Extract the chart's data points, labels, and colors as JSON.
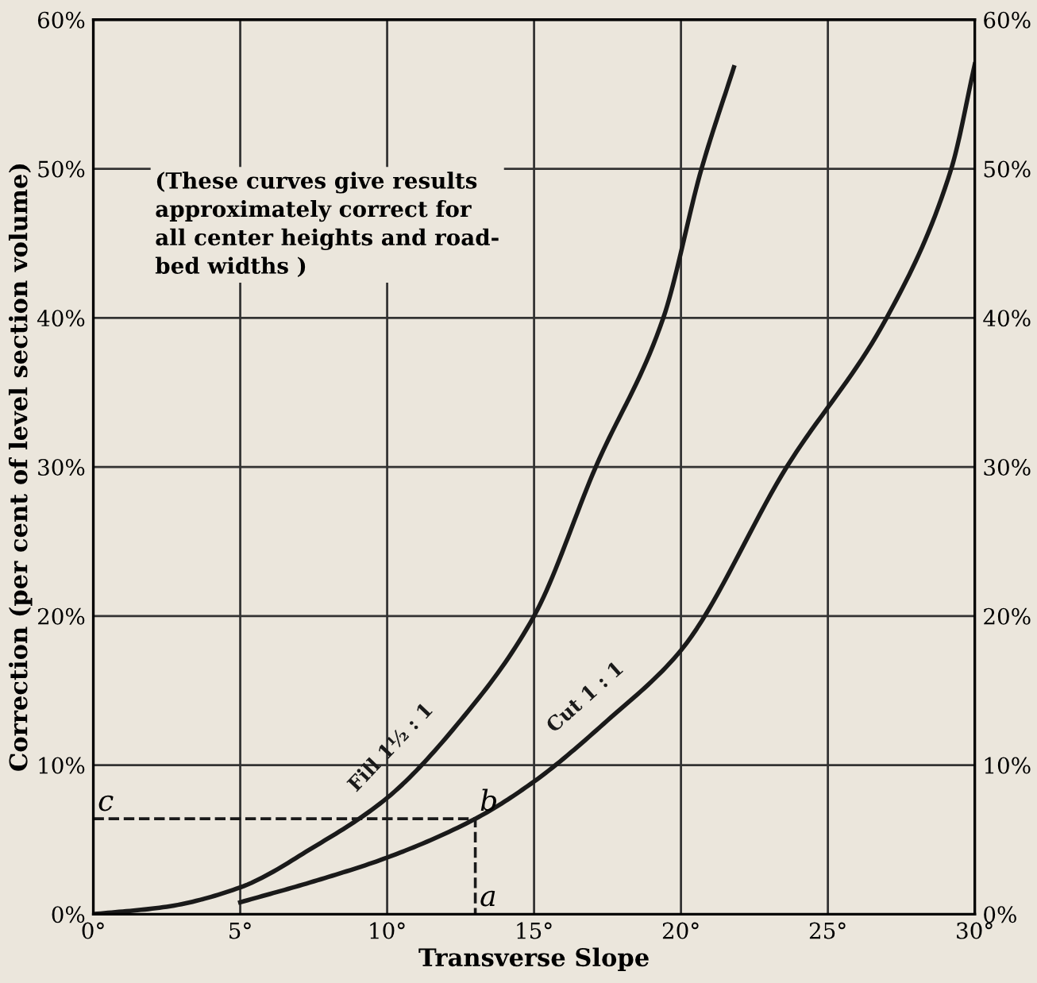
{
  "chart_data": {
    "type": "line",
    "xlabel": "Transverse Slope",
    "ylabel": "Correction (per cent of level section volume)",
    "xlim": [
      0,
      30
    ],
    "xticks": [
      {
        "value": 0,
        "label": "0°"
      },
      {
        "value": 5,
        "label": "5°"
      },
      {
        "value": 10,
        "label": "10°"
      },
      {
        "value": 15,
        "label": "15°"
      },
      {
        "value": 20,
        "label": "20°"
      },
      {
        "value": 25,
        "label": "25°"
      },
      {
        "value": 30,
        "label": "30°"
      }
    ],
    "ylim": [
      0,
      60
    ],
    "yticks": [
      {
        "value": 0,
        "label": "0%"
      },
      {
        "value": 10,
        "label": "10%"
      },
      {
        "value": 20,
        "label": "20%"
      },
      {
        "value": 30,
        "label": "30%"
      },
      {
        "value": 40,
        "label": "40%"
      },
      {
        "value": 50,
        "label": "50%"
      },
      {
        "value": 60,
        "label": "60%"
      }
    ],
    "y2lim": [
      0,
      60
    ],
    "y2ticks": [
      {
        "value": 0,
        "label": "0%"
      },
      {
        "value": 10,
        "label": "10%"
      },
      {
        "value": 20,
        "label": "20%"
      },
      {
        "value": 30,
        "label": "30%"
      },
      {
        "value": 40,
        "label": "40%"
      },
      {
        "value": 50,
        "label": "50%"
      },
      {
        "value": 60,
        "label": "60%"
      }
    ],
    "grid": true,
    "marker": "none",
    "series": [
      {
        "name": "Fill 1½ : 1",
        "color": "#1a1a1a",
        "line_style": "solid",
        "x": [
          0,
          2.5,
          5,
          7.5,
          10,
          12.5,
          15,
          17.1,
          19.4,
          20.7,
          21.8
        ],
        "values": [
          0,
          0.5,
          1.8,
          4.5,
          7.8,
          13,
          20,
          30,
          40,
          50,
          56.8
        ]
      },
      {
        "name": "Cut 1 : 1",
        "color": "#1a1a1a",
        "line_style": "solid",
        "x": [
          5,
          7.5,
          10,
          13,
          15,
          17.5,
          20,
          23.6,
          27,
          29.2,
          30
        ],
        "values": [
          0.8,
          2.2,
          3.8,
          6.4,
          8.9,
          13,
          17.7,
          30,
          40,
          50,
          57
        ]
      },
      {
        "color": "#1a1a1a",
        "line_style": "dashed",
        "x": [
          0,
          13,
          13
        ],
        "values": [
          6.4,
          6.4,
          0
        ],
        "value_labels": [
          "c",
          "b",
          "a"
        ]
      }
    ],
    "annotations": [
      "(These curves give results\napproximately correct for\nall center heights and road-\nbed widths )"
    ]
  }
}
